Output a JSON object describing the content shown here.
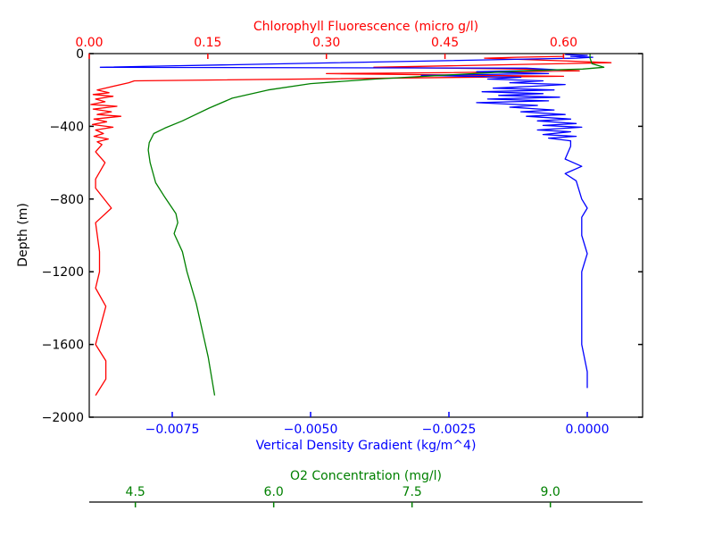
{
  "chart_data": {
    "type": "line",
    "title": "",
    "depth_axis": {
      "label": "Depth (m)",
      "range": [
        -2000,
        0
      ],
      "ticks": [
        0,
        -400,
        -800,
        -1200,
        -1600,
        -2000
      ],
      "tick_labels": [
        "0",
        "−400",
        "−800",
        "−1200",
        "−1600",
        "−2000"
      ],
      "color": "#000000"
    },
    "axes": [
      {
        "id": "chlorophyll",
        "label": "Chlorophyll Fluorescence (micro g/l)",
        "position": "top",
        "color": "#ff0000",
        "range": [
          0.0,
          0.7
        ],
        "ticks": [
          0.0,
          0.15,
          0.3,
          0.45,
          0.6
        ],
        "tick_labels": [
          "0.00",
          "0.15",
          "0.30",
          "0.45",
          "0.60"
        ]
      },
      {
        "id": "density_gradient",
        "label": "Vertical Density Gradient (kg/m^4)",
        "position": "bottom",
        "color": "#0000ff",
        "range": [
          -0.009,
          0.001
        ],
        "ticks": [
          -0.0075,
          -0.005,
          -0.0025,
          0.0
        ],
        "tick_labels": [
          "−0.0075",
          "−0.0050",
          "−0.0025",
          "0.0000"
        ]
      },
      {
        "id": "o2",
        "label": "O2 Concentration (mg/l)",
        "position": "bottom-offset",
        "color": "#008000",
        "range": [
          4.0,
          10.0
        ],
        "ticks": [
          4.5,
          6.0,
          7.5,
          9.0
        ],
        "tick_labels": [
          "4.5",
          "6.0",
          "7.5",
          "9.0"
        ]
      }
    ],
    "series": [
      {
        "name": "Chlorophyll Fluorescence",
        "axis": "chlorophyll",
        "color": "#ff0000",
        "points": [
          [
            0.6,
            0
          ],
          [
            0.6,
            -15
          ],
          [
            0.54,
            -20
          ],
          [
            0.5,
            -25
          ],
          [
            0.6,
            -40
          ],
          [
            0.66,
            -50
          ],
          [
            0.36,
            -75
          ],
          [
            0.55,
            -85
          ],
          [
            0.62,
            -95
          ],
          [
            0.45,
            -105
          ],
          [
            0.3,
            -110
          ],
          [
            0.6,
            -125
          ],
          [
            0.057,
            -150
          ],
          [
            0.05,
            -160
          ],
          [
            0.02,
            -190
          ],
          [
            0.01,
            -200
          ],
          [
            0.025,
            -215
          ],
          [
            0.005,
            -225
          ],
          [
            0.03,
            -235
          ],
          [
            0.008,
            -250
          ],
          [
            0.02,
            -265
          ],
          [
            0.002,
            -280
          ],
          [
            0.035,
            -290
          ],
          [
            0.005,
            -305
          ],
          [
            0.028,
            -320
          ],
          [
            0.01,
            -335
          ],
          [
            0.04,
            -345
          ],
          [
            0.006,
            -360
          ],
          [
            0.022,
            -375
          ],
          [
            0.004,
            -390
          ],
          [
            0.03,
            -405
          ],
          [
            0.008,
            -420
          ],
          [
            0.018,
            -440
          ],
          [
            0.006,
            -455
          ],
          [
            0.024,
            -470
          ],
          [
            0.01,
            -485
          ],
          [
            0.016,
            -500
          ],
          [
            0.008,
            -540
          ],
          [
            0.02,
            -600
          ],
          [
            0.008,
            -690
          ],
          [
            0.008,
            -740
          ],
          [
            0.028,
            -850
          ],
          [
            0.008,
            -930
          ],
          [
            0.013,
            -1090
          ],
          [
            0.013,
            -1200
          ],
          [
            0.008,
            -1290
          ],
          [
            0.021,
            -1390
          ],
          [
            0.008,
            -1600
          ],
          [
            0.021,
            -1690
          ],
          [
            0.021,
            -1790
          ],
          [
            0.008,
            -1880
          ]
        ]
      },
      {
        "name": "Vertical Density Gradient",
        "axis": "density_gradient",
        "color": "#0000ff",
        "points": [
          [
            -0.0004,
            5
          ],
          [
            0.0,
            10
          ],
          [
            -0.0003,
            15
          ],
          [
            0.0001,
            20
          ],
          [
            -0.0002,
            25
          ],
          [
            -0.0088,
            75
          ],
          [
            -0.0011,
            80
          ],
          [
            -0.0005,
            90
          ],
          [
            -0.002,
            100
          ],
          [
            -0.0007,
            110
          ],
          [
            -0.003,
            120
          ],
          [
            -0.0012,
            130
          ],
          [
            -0.0018,
            140
          ],
          [
            -0.0008,
            150
          ],
          [
            -0.0014,
            160
          ],
          [
            -0.0004,
            170
          ],
          [
            -0.001,
            180
          ],
          [
            -0.0017,
            190
          ],
          [
            -0.0006,
            200
          ],
          [
            -0.0019,
            210
          ],
          [
            -0.0008,
            220
          ],
          [
            -0.0016,
            230
          ],
          [
            -0.0005,
            240
          ],
          [
            -0.0018,
            250
          ],
          [
            -0.0007,
            260
          ],
          [
            -0.002,
            270
          ],
          [
            -0.0009,
            285
          ],
          [
            -0.0014,
            295
          ],
          [
            -0.0006,
            310
          ],
          [
            -0.0012,
            320
          ],
          [
            -0.0004,
            335
          ],
          [
            -0.0011,
            345
          ],
          [
            -0.0003,
            360
          ],
          [
            -0.0009,
            370
          ],
          [
            -0.0002,
            385
          ],
          [
            -0.0008,
            395
          ],
          [
            -0.0001,
            405
          ],
          [
            -0.0009,
            420
          ],
          [
            -0.0003,
            430
          ],
          [
            -0.0008,
            445
          ],
          [
            -0.0002,
            455
          ],
          [
            -0.0007,
            465
          ],
          [
            -0.0003,
            480
          ],
          [
            -0.0003,
            510
          ],
          [
            -0.0004,
            580
          ],
          [
            -0.0001,
            620
          ],
          [
            -0.0004,
            660
          ],
          [
            -0.0002,
            700
          ],
          [
            -0.0001,
            800
          ],
          [
            0.0,
            850
          ],
          [
            -0.0001,
            900
          ],
          [
            -0.0001,
            1000
          ],
          [
            0.0,
            1100
          ],
          [
            -0.0001,
            1200
          ],
          [
            -0.0001,
            1400
          ],
          [
            -0.0001,
            1600
          ],
          [
            0.0,
            1750
          ],
          [
            0.0,
            1840
          ]
        ]
      },
      {
        "name": "O2 Concentration",
        "axis": "o2",
        "color": "#008000",
        "points": [
          [
            9.43,
            0
          ],
          [
            9.43,
            -25
          ],
          [
            9.45,
            -55
          ],
          [
            9.58,
            -75
          ],
          [
            9.35,
            -85
          ],
          [
            8.7,
            -95
          ],
          [
            7.1,
            -140
          ],
          [
            6.4,
            -165
          ],
          [
            5.94,
            -200
          ],
          [
            5.55,
            -245
          ],
          [
            5.3,
            -300
          ],
          [
            5.01,
            -370
          ],
          [
            4.82,
            -410
          ],
          [
            4.7,
            -440
          ],
          [
            4.65,
            -490
          ],
          [
            4.64,
            -530
          ],
          [
            4.66,
            -600
          ],
          [
            4.72,
            -710
          ],
          [
            4.82,
            -790
          ],
          [
            4.94,
            -880
          ],
          [
            4.96,
            -930
          ],
          [
            4.92,
            -990
          ],
          [
            5.01,
            -1090
          ],
          [
            5.06,
            -1200
          ],
          [
            5.16,
            -1375
          ],
          [
            5.29,
            -1670
          ],
          [
            5.36,
            -1880
          ]
        ]
      }
    ],
    "grid": false,
    "legend": "none"
  }
}
